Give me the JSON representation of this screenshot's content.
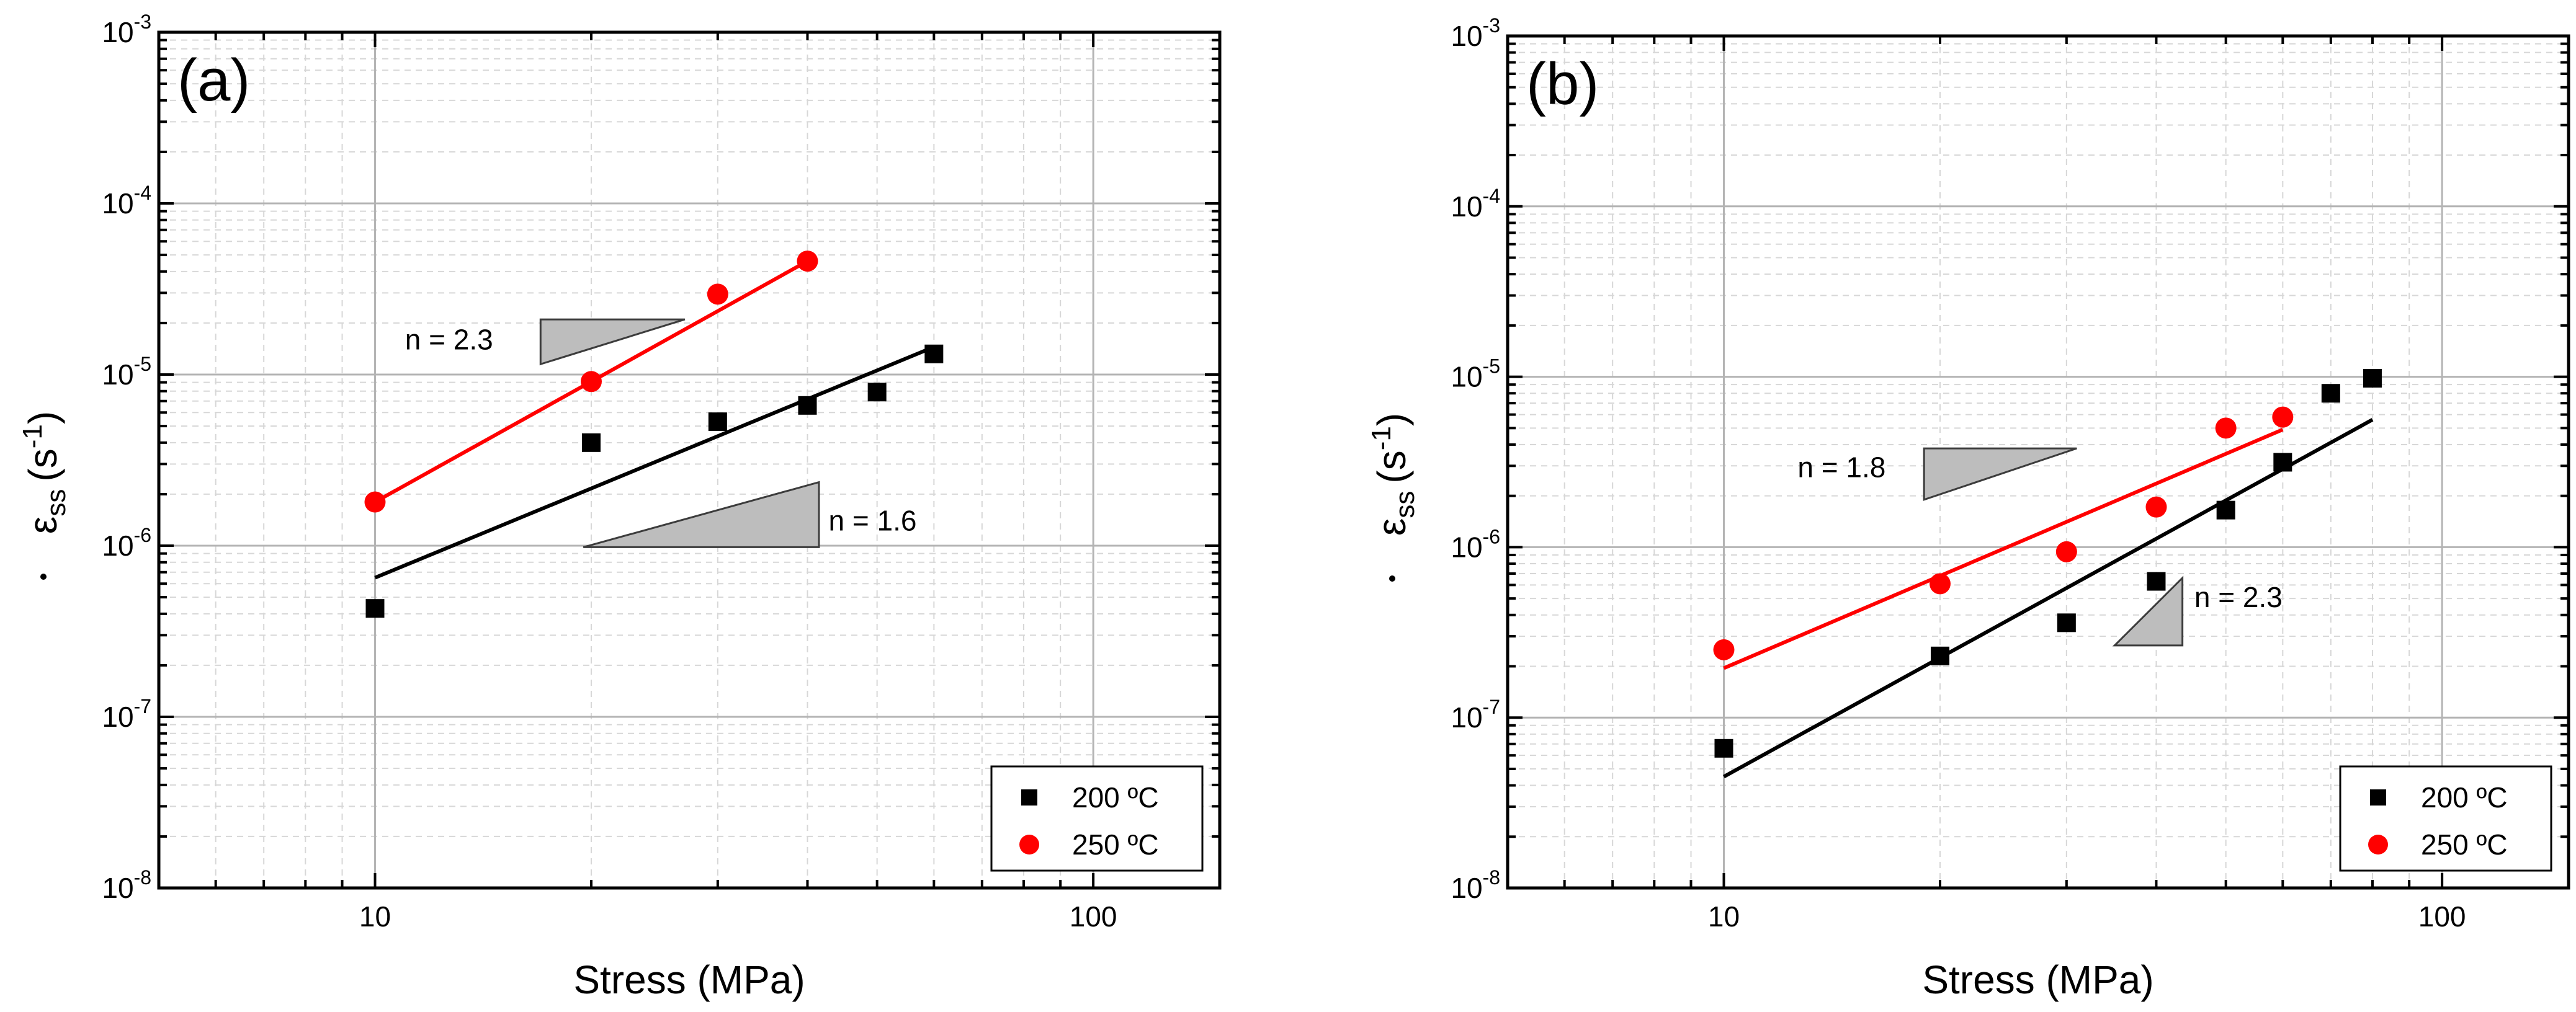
{
  "chart_data": [
    {
      "type": "scatter",
      "panel_label": "(a)",
      "xlabel": "Stress (MPa)",
      "ylabel_main": "ε",
      "ylabel_sub": "ss",
      "ylabel_unit": "(s",
      "ylabel_exp": "-1",
      "ylabel_close": ")",
      "xlim": [
        5,
        150
      ],
      "ylim_exp": [
        -8,
        -3
      ],
      "x_ticks": [
        {
          "value": 10,
          "label": "10"
        },
        {
          "value": 100,
          "label": "100"
        }
      ],
      "y_ticks": [
        {
          "exp": -8,
          "base": "10",
          "sup": "-8"
        },
        {
          "exp": -7,
          "base": "10",
          "sup": "-7"
        },
        {
          "exp": -6,
          "base": "10",
          "sup": "-6"
        },
        {
          "exp": -5,
          "base": "10",
          "sup": "-5"
        },
        {
          "exp": -4,
          "base": "10",
          "sup": "-4"
        },
        {
          "exp": -3,
          "base": "10",
          "sup": "-3"
        }
      ],
      "series": [
        {
          "name": "200 °C",
          "legend_label": "200 ºC",
          "marker": "square",
          "color": "#000000",
          "x": [
            10,
            20,
            30,
            40,
            50,
            60
          ],
          "y": [
            4.3e-07,
            4e-06,
            5.3e-06,
            6.6e-06,
            7.9e-06,
            1.32e-05
          ],
          "fit": {
            "x": [
              10,
              60
            ],
            "y": [
              6.5e-07,
              1.45e-05
            ]
          }
        },
        {
          "name": "250 °C",
          "legend_label": "250 ºC",
          "marker": "circle",
          "color": "#ff0000",
          "x": [
            10,
            20,
            30,
            40
          ],
          "y": [
            1.8e-06,
            9.1e-06,
            2.95e-05,
            4.6e-05
          ],
          "fit": {
            "x": [
              10,
              40
            ],
            "y": [
              1.8e-06,
              4.6e-05
            ]
          }
        }
      ],
      "annotations": [
        {
          "text": "n = 2.3",
          "x": 14.6,
          "y": 1.6e-05,
          "anchor": "end",
          "triangle": [
            [
              17,
              2.1e-05
            ],
            [
              27,
              2.1e-05
            ],
            [
              17,
              1.15e-05
            ]
          ]
        },
        {
          "text": "n = 1.6",
          "x": 42.8,
          "y": 1.4e-06,
          "anchor": "start",
          "triangle": [
            [
              19.5,
              9.8e-07
            ],
            [
              41.5,
              9.8e-07
            ],
            [
              41.5,
              2.35e-06
            ]
          ]
        }
      ],
      "legend_position": "bottom-right"
    },
    {
      "type": "scatter",
      "panel_label": "(b)",
      "xlabel": "Stress (MPa)",
      "ylabel_main": "ε",
      "ylabel_sub": "ss",
      "ylabel_unit": "(s",
      "ylabel_exp": "-1",
      "ylabel_close": ")",
      "xlim": [
        5,
        150
      ],
      "ylim_exp": [
        -8,
        -3
      ],
      "x_ticks": [
        {
          "value": 10,
          "label": "10"
        },
        {
          "value": 100,
          "label": "100"
        }
      ],
      "y_ticks": [
        {
          "exp": -8,
          "base": "10",
          "sup": "-8"
        },
        {
          "exp": -7,
          "base": "10",
          "sup": "-7"
        },
        {
          "exp": -6,
          "base": "10",
          "sup": "-6"
        },
        {
          "exp": -5,
          "base": "10",
          "sup": "-5"
        },
        {
          "exp": -4,
          "base": "10",
          "sup": "-4"
        },
        {
          "exp": -3,
          "base": "10",
          "sup": "-3"
        }
      ],
      "series": [
        {
          "name": "200 °C",
          "legend_label": "200 ºC",
          "marker": "square",
          "color": "#000000",
          "x": [
            10,
            20,
            30,
            40,
            50,
            60,
            70,
            80
          ],
          "y": [
            6.6e-08,
            2.3e-07,
            3.6e-07,
            6.3e-07,
            1.65e-06,
            3.15e-06,
            8e-06,
            9.8e-06
          ],
          "fit": {
            "x": [
              10,
              80
            ],
            "y": [
              4.5e-08,
              5.6e-06
            ]
          }
        },
        {
          "name": "250 °C",
          "legend_label": "250 ºC",
          "marker": "circle",
          "color": "#ff0000",
          "x": [
            10,
            20,
            30,
            40,
            50,
            60
          ],
          "y": [
            2.5e-07,
            6.1e-07,
            9.4e-07,
            1.72e-06,
            5e-06,
            5.8e-06
          ],
          "fit": {
            "x": [
              10,
              60
            ],
            "y": [
              1.95e-07,
              4.9e-06
            ]
          }
        }
      ],
      "annotations": [
        {
          "text": "n = 1.8",
          "x": 16.8,
          "y": 2.95e-06,
          "anchor": "end",
          "triangle": [
            [
              19,
              3.8e-06
            ],
            [
              31,
              3.8e-06
            ],
            [
              19,
              1.9e-06
            ]
          ]
        },
        {
          "text": "n = 2.3",
          "x": 45.2,
          "y": 5.1e-07,
          "anchor": "start",
          "triangle": [
            [
              35,
              2.65e-07
            ],
            [
              43.5,
              2.65e-07
            ],
            [
              43.5,
              6.6e-07
            ]
          ]
        }
      ],
      "legend_position": "bottom-right"
    }
  ]
}
